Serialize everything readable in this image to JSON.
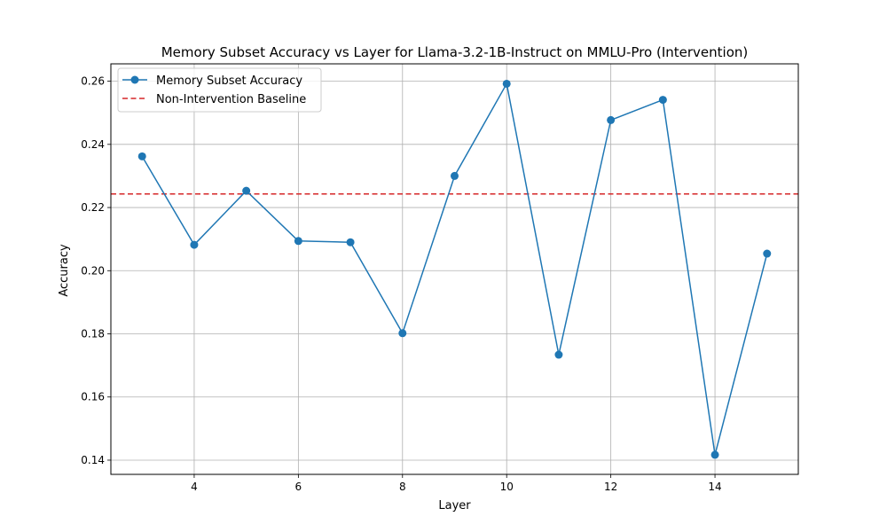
{
  "chart_data": {
    "type": "line",
    "title": "Memory Subset Accuracy vs Layer for Llama-3.2-1B-Instruct on MMLU-Pro (Intervention)",
    "xlabel": "Layer",
    "ylabel": "Accuracy",
    "xlim": [
      2.4,
      15.6
    ],
    "ylim": [
      0.1355,
      0.2655
    ],
    "xticks": [
      4,
      6,
      8,
      10,
      12,
      14
    ],
    "yticks": [
      0.14,
      0.16,
      0.18,
      0.2,
      0.22,
      0.24,
      0.26
    ],
    "xtick_labels": [
      "4",
      "6",
      "8",
      "10",
      "12",
      "14"
    ],
    "ytick_labels": [
      "0.14",
      "0.16",
      "0.18",
      "0.20",
      "0.22",
      "0.24",
      "0.26"
    ],
    "grid": true,
    "legend_position": "top-left",
    "series": [
      {
        "name": "Memory Subset Accuracy",
        "color": "#1f77b4",
        "style": "solid-with-circle-markers",
        "x": [
          3,
          4,
          5,
          6,
          7,
          8,
          9,
          10,
          11,
          12,
          13,
          14,
          15
        ],
        "values": [
          0.2362,
          0.2082,
          0.2253,
          0.2094,
          0.209,
          0.1802,
          0.23,
          0.2592,
          0.1734,
          0.2477,
          0.2541,
          0.1417,
          0.2054
        ]
      }
    ],
    "reference_lines": [
      {
        "name": "Non-Intervention Baseline",
        "color": "#d62728",
        "style": "dashed",
        "y": 0.2243
      }
    ]
  }
}
